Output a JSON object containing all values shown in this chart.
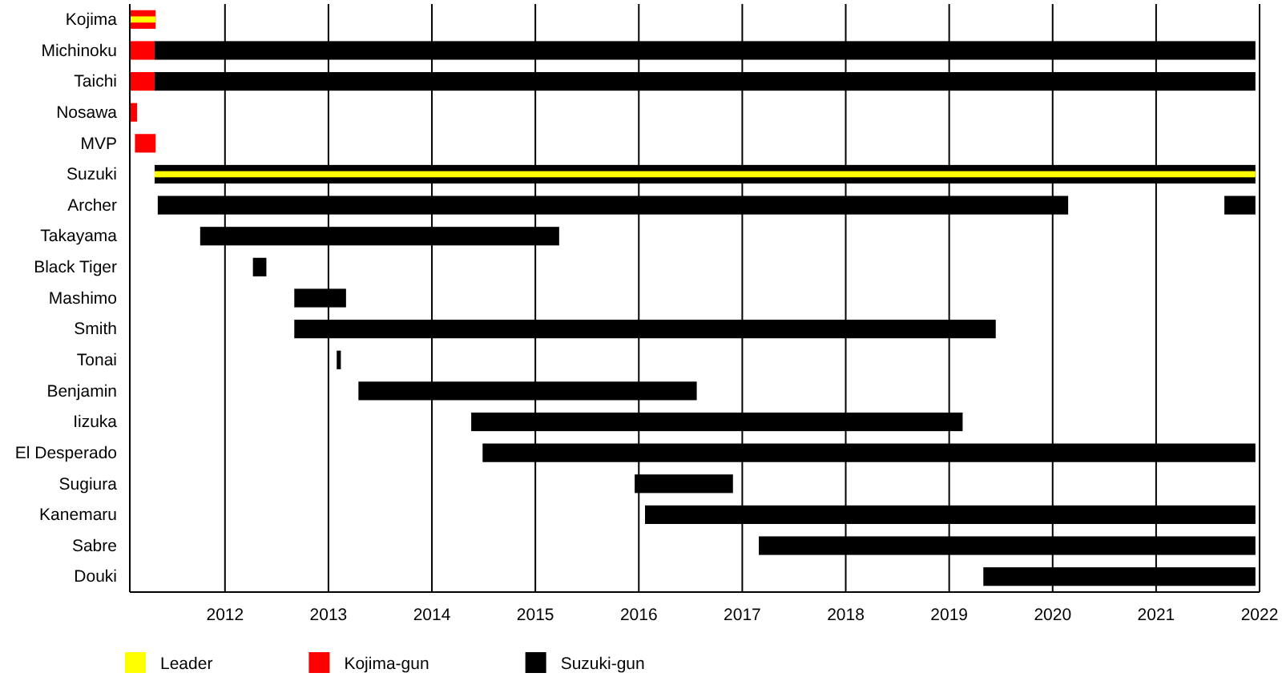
{
  "chart_data": {
    "type": "bar",
    "orientation": "horizontal",
    "categories": [
      "Kojima",
      "Michinoku",
      "Taichi",
      "Nosawa",
      "MVP",
      "Suzuki",
      "Archer",
      "Takayama",
      "Black Tiger",
      "Mashimo",
      "Smith",
      "Tonai",
      "Benjamin",
      "Iizuka",
      "El Desperado",
      "Sugiura",
      "Kanemaru",
      "Sabre",
      "Douki"
    ],
    "series": [
      {
        "name": "Leader",
        "color": "#ffff00",
        "base": [
          2011.08,
          null,
          null,
          null,
          null,
          2011.32,
          null,
          null,
          null,
          null,
          null,
          null,
          null,
          null,
          null,
          null,
          null,
          null,
          null
        ],
        "values": [
          0.25,
          null,
          null,
          null,
          null,
          10.64,
          null,
          null,
          null,
          null,
          null,
          null,
          null,
          null,
          null,
          null,
          null,
          null,
          null
        ]
      },
      {
        "name": "Kojima-gun",
        "color": "#ff0000",
        "base": [
          2011.08,
          2011.08,
          2011.08,
          2011.08,
          2011.13,
          null,
          null,
          null,
          null,
          null,
          null,
          null,
          null,
          null,
          null,
          null,
          null,
          null,
          null
        ],
        "values": [
          0.25,
          0.24,
          0.24,
          0.07,
          0.2,
          null,
          null,
          null,
          null,
          null,
          null,
          null,
          null,
          null,
          null,
          null,
          null,
          null,
          null
        ]
      },
      {
        "name": "Suzuki-gun",
        "color": "#000000",
        "base": [
          null,
          2011.32,
          2011.32,
          null,
          null,
          2011.32,
          2011.35,
          2011.76,
          2012.27,
          2012.67,
          2012.67,
          2013.08,
          2013.29,
          2014.38,
          2014.49,
          2015.96,
          2016.06,
          2017.16,
          2019.33
        ],
        "values": [
          null,
          10.64,
          10.64,
          null,
          null,
          10.64,
          8.8,
          3.47,
          0.13,
          0.5,
          6.78,
          0.04,
          3.27,
          4.75,
          7.47,
          0.95,
          5.9,
          4.8,
          2.63
        ]
      },
      {
        "color": "#000000",
        "base": [
          null,
          null,
          null,
          null,
          null,
          null,
          2021.66,
          null,
          null,
          null,
          null,
          null,
          null,
          null,
          null,
          null,
          null,
          null,
          null
        ],
        "values": [
          null,
          null,
          null,
          null,
          null,
          null,
          0.3,
          null,
          null,
          null,
          null,
          null,
          null,
          null,
          null,
          null,
          null,
          null,
          null
        ]
      }
    ],
    "xlim": [
      2011.08,
      2022
    ],
    "xticks": [
      2012,
      2013,
      2014,
      2015,
      2016,
      2017,
      2018,
      2019,
      2020,
      2021,
      2022
    ],
    "grid": "x",
    "legend": "bottom left"
  }
}
